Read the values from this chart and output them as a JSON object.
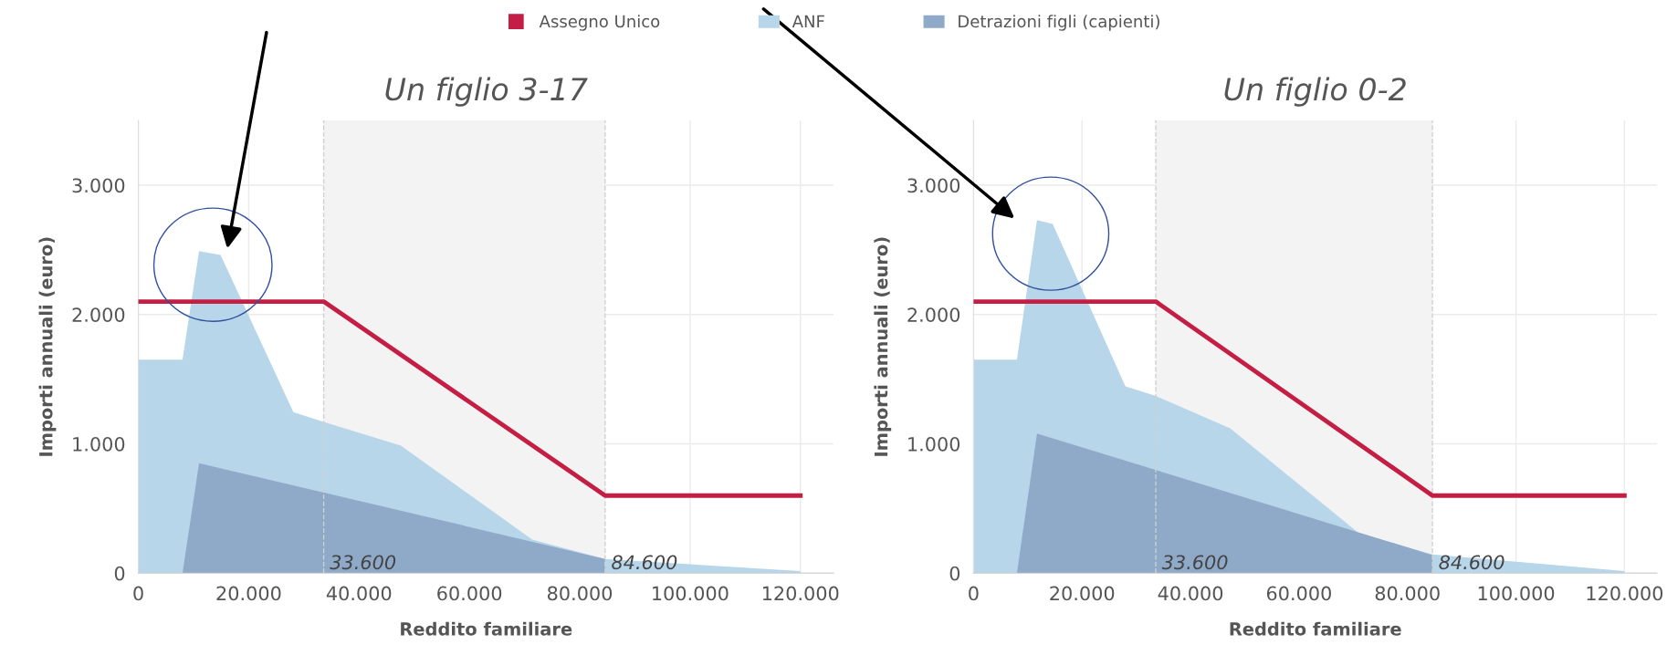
{
  "chart_data": [
    {
      "type": "area",
      "title": "Un figlio 3-17",
      "xlabel": "Reddito familiare",
      "ylabel": "Importi annuali (euro)",
      "xlim": [
        0,
        126000
      ],
      "xticks": [
        {
          "value": 0,
          "label": "0"
        },
        {
          "value": 20000,
          "label": "20.000"
        },
        {
          "value": 40000,
          "label": "40.000"
        },
        {
          "value": 60000,
          "label": "60.000"
        },
        {
          "value": 80000,
          "label": "80.000"
        },
        {
          "value": 100000,
          "label": "100.000"
        },
        {
          "value": 120000,
          "label": "120.000"
        }
      ],
      "ylim": [
        0,
        3500
      ],
      "yticks": [
        {
          "value": 0,
          "label": "0"
        },
        {
          "value": 1000,
          "label": "1.000"
        },
        {
          "value": 2000,
          "label": "2.000"
        },
        {
          "value": 3000,
          "label": "3.000"
        }
      ],
      "grid": true,
      "legend": "top",
      "series": [
        {
          "name": "Assegno Unico",
          "type": "line",
          "color": "#c41e45",
          "x": [
            0,
            33600,
            84600,
            120000
          ],
          "values": [
            2100,
            2100,
            600,
            600
          ]
        },
        {
          "name": "ANF",
          "color": "#b8d6ea",
          "x": [
            0,
            8000,
            11000,
            14900,
            28100,
            33600,
            47600,
            71400,
            84600,
            120000
          ],
          "values": [
            1650,
            1650,
            2490,
            2460,
            1245,
            1170,
            985,
            260,
            110,
            15
          ]
        },
        {
          "name": "Detrazioni figli (capienti)",
          "color": "#8eaac8",
          "x": [
            8000,
            11000,
            84600
          ],
          "values": [
            0,
            850,
            110
          ]
        }
      ],
      "bands": [
        {
          "axis": "x",
          "from": 33600,
          "to": 84600,
          "color": "#f3f3f3"
        }
      ],
      "ref_lines": [
        {
          "axis": "x",
          "value": 33600,
          "label": "33.600",
          "color": "#d0d0d0",
          "line_style": "dashed"
        },
        {
          "axis": "x",
          "value": 84600,
          "label": "84.600",
          "color": "#d0d0d0",
          "line_style": "dashed"
        }
      ]
    },
    {
      "type": "area",
      "title": "Un figlio 0-2",
      "xlabel": "Reddito familiare",
      "ylabel": "Importi annuali (euro)",
      "xlim": [
        0,
        126000
      ],
      "xticks": [
        {
          "value": 0,
          "label": "0"
        },
        {
          "value": 20000,
          "label": "20.000"
        },
        {
          "value": 40000,
          "label": "40.000"
        },
        {
          "value": 60000,
          "label": "60.000"
        },
        {
          "value": 80000,
          "label": "80.000"
        },
        {
          "value": 100000,
          "label": "100.000"
        },
        {
          "value": 120000,
          "label": "120.000"
        }
      ],
      "ylim": [
        0,
        3500
      ],
      "yticks": [
        {
          "value": 0,
          "label": "0"
        },
        {
          "value": 1000,
          "label": "1.000"
        },
        {
          "value": 2000,
          "label": "2.000"
        },
        {
          "value": 3000,
          "label": "3.000"
        }
      ],
      "grid": true,
      "series": [
        {
          "type": "line",
          "color": "#c41e45",
          "x": [
            0,
            33600,
            84600,
            120000
          ],
          "values": [
            2100,
            2100,
            600,
            600
          ]
        },
        {
          "color": "#b8d6ea",
          "x": [
            0,
            8000,
            11700,
            14600,
            28000,
            33600,
            47300,
            71000,
            84600,
            120000
          ],
          "values": [
            1650,
            1650,
            2730,
            2700,
            1445,
            1370,
            1120,
            310,
            145,
            15
          ]
        },
        {
          "color": "#8eaac8",
          "x": [
            8000,
            11700,
            84600
          ],
          "values": [
            0,
            1080,
            140
          ]
        }
      ],
      "bands": [
        {
          "axis": "x",
          "from": 33600,
          "to": 84600,
          "color": "#f3f3f3"
        }
      ],
      "ref_lines": [
        {
          "axis": "x",
          "value": 33600,
          "label": "33.600",
          "color": "#d0d0d0",
          "line_style": "dashed"
        },
        {
          "axis": "x",
          "value": 84600,
          "label": "84.600",
          "color": "#d0d0d0",
          "line_style": "dashed"
        }
      ]
    }
  ]
}
